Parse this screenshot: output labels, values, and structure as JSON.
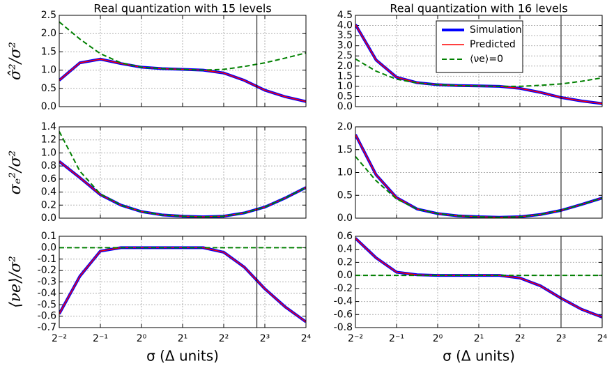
{
  "chart_data": [
    {
      "type": "line",
      "title": "Real quantization with 15 levels",
      "ylabel": "σ̂²/σ²",
      "x": [
        0.25,
        0.354,
        0.5,
        0.707,
        1,
        1.414,
        2,
        2.828,
        4,
        5.657,
        8,
        11.31,
        16
      ],
      "xlim": [
        0.25,
        16
      ],
      "x_log_base": 2,
      "xticks": [
        0.25,
        0.5,
        1,
        2,
        4,
        8,
        16
      ],
      "ylim": [
        0,
        2.5
      ],
      "yticks": [
        {
          "value": 0,
          "label": "0.0"
        },
        0.5,
        {
          "value": 1,
          "label": "1.0"
        },
        1.5,
        {
          "value": 2,
          "label": "2.0"
        },
        2.5
      ],
      "grid": true,
      "vline": 7,
      "series": [
        {
          "color": "#0000ff",
          "width": 4,
          "values": [
            0.72,
            1.2,
            1.3,
            1.18,
            1.08,
            1.04,
            1.02,
            1.0,
            0.92,
            0.72,
            0.45,
            0.27,
            0.14
          ]
        },
        {
          "color": "#ff0000",
          "width": 1.5,
          "values": [
            0.72,
            1.2,
            1.3,
            1.18,
            1.08,
            1.04,
            1.02,
            1.0,
            0.92,
            0.72,
            0.45,
            0.27,
            0.14
          ]
        },
        {
          "color": "#008000",
          "width": 2,
          "dash": true,
          "values": [
            2.32,
            1.85,
            1.45,
            1.2,
            1.08,
            1.04,
            1.02,
            1.0,
            1.02,
            1.1,
            1.2,
            1.33,
            1.47
          ]
        }
      ]
    },
    {
      "type": "line",
      "title": "Real quantization with 16 levels",
      "x": [
        0.25,
        0.354,
        0.5,
        0.707,
        1,
        1.414,
        2,
        2.828,
        4,
        5.657,
        8,
        11.31,
        16
      ],
      "xlim": [
        0.25,
        16
      ],
      "x_log_base": 2,
      "xticks": [
        0.25,
        0.5,
        1,
        2,
        4,
        8,
        16
      ],
      "ylim": [
        0,
        4.5
      ],
      "yticks": [
        {
          "value": 0,
          "label": "0.0"
        },
        0.5,
        {
          "value": 1,
          "label": "1.0"
        },
        1.5,
        {
          "value": 2,
          "label": "2.0"
        },
        2.5,
        {
          "value": 3,
          "label": "3.0"
        },
        3.5,
        {
          "value": 4,
          "label": "4.0"
        },
        4.5
      ],
      "grid": true,
      "vline": 8,
      "legend": "upper center",
      "series": [
        {
          "name": "Simulation",
          "color": "#0000ff",
          "width": 4,
          "values": [
            4.05,
            2.3,
            1.45,
            1.18,
            1.08,
            1.04,
            1.02,
            1.0,
            0.9,
            0.7,
            0.45,
            0.28,
            0.15
          ]
        },
        {
          "name": "Predicted",
          "color": "#ff0000",
          "width": 1.5,
          "values": [
            4.05,
            2.3,
            1.45,
            1.18,
            1.08,
            1.04,
            1.02,
            1.0,
            0.9,
            0.7,
            0.45,
            0.28,
            0.15
          ]
        },
        {
          "name": "⟨νe⟩=0",
          "color": "#008000",
          "width": 2,
          "dash": true,
          "values": [
            2.35,
            1.75,
            1.35,
            1.17,
            1.08,
            1.04,
            1.02,
            1.0,
            1.0,
            1.05,
            1.12,
            1.25,
            1.42
          ]
        }
      ]
    },
    {
      "type": "line",
      "ylabel": "σₑ²/σ²",
      "x": [
        0.25,
        0.354,
        0.5,
        0.707,
        1,
        1.414,
        2,
        2.828,
        4,
        5.657,
        8,
        11.31,
        16
      ],
      "xlim": [
        0.25,
        16
      ],
      "x_log_base": 2,
      "xticks": [
        0.25,
        0.5,
        1,
        2,
        4,
        8,
        16
      ],
      "ylim": [
        0,
        1.4
      ],
      "yticks": [
        {
          "value": 0,
          "label": "0.0"
        },
        0.2,
        0.4,
        0.6,
        0.8,
        {
          "value": 1,
          "label": "1.0"
        },
        1.2,
        1.4
      ],
      "grid": true,
      "vline": 7,
      "series": [
        {
          "color": "#0000ff",
          "width": 4,
          "values": [
            0.87,
            0.62,
            0.36,
            0.2,
            0.1,
            0.05,
            0.03,
            0.02,
            0.03,
            0.08,
            0.17,
            0.31,
            0.47
          ]
        },
        {
          "color": "#ff0000",
          "width": 1.5,
          "values": [
            0.87,
            0.62,
            0.36,
            0.2,
            0.1,
            0.05,
            0.03,
            0.02,
            0.03,
            0.08,
            0.17,
            0.31,
            0.47
          ]
        },
        {
          "color": "#008000",
          "width": 2,
          "dash": true,
          "values": [
            1.33,
            0.72,
            0.37,
            0.2,
            0.1,
            0.05,
            0.03,
            0.02,
            0.03,
            0.08,
            0.17,
            0.31,
            0.47
          ]
        }
      ]
    },
    {
      "type": "line",
      "x": [
        0.25,
        0.354,
        0.5,
        0.707,
        1,
        1.414,
        2,
        2.828,
        4,
        5.657,
        8,
        11.31,
        16
      ],
      "xlim": [
        0.25,
        16
      ],
      "x_log_base": 2,
      "xticks": [
        0.25,
        0.5,
        1,
        2,
        4,
        8,
        16
      ],
      "ylim": [
        0,
        2
      ],
      "yticks": [
        {
          "value": 0,
          "label": "0.0"
        },
        0.5,
        {
          "value": 1,
          "label": "1.0"
        },
        1.5,
        {
          "value": 2,
          "label": "2.0"
        }
      ],
      "grid": true,
      "vline": 8,
      "series": [
        {
          "color": "#0000ff",
          "width": 4,
          "values": [
            1.83,
            0.95,
            0.45,
            0.2,
            0.1,
            0.05,
            0.03,
            0.02,
            0.03,
            0.08,
            0.17,
            0.3,
            0.44
          ]
        },
        {
          "color": "#ff0000",
          "width": 1.5,
          "values": [
            1.83,
            0.95,
            0.45,
            0.2,
            0.1,
            0.05,
            0.03,
            0.02,
            0.03,
            0.08,
            0.17,
            0.3,
            0.44
          ]
        },
        {
          "color": "#008000",
          "width": 2,
          "dash": true,
          "values": [
            1.35,
            0.82,
            0.42,
            0.2,
            0.1,
            0.05,
            0.03,
            0.02,
            0.03,
            0.08,
            0.17,
            0.3,
            0.44
          ]
        }
      ]
    },
    {
      "type": "line",
      "ylabel": "⟨νe⟩/σ²",
      "xlabel": "σ (Δ units)",
      "x": [
        0.25,
        0.354,
        0.5,
        0.707,
        1,
        1.414,
        2,
        2.828,
        4,
        5.657,
        8,
        11.31,
        16
      ],
      "xlim": [
        0.25,
        16
      ],
      "x_log_base": 2,
      "xticks": [
        {
          "value": 0.25,
          "label": "2⁻²"
        },
        {
          "value": 0.5,
          "label": "2⁻¹"
        },
        {
          "value": 1,
          "label": "2⁰"
        },
        {
          "value": 2,
          "label": "2¹"
        },
        {
          "value": 4,
          "label": "2²"
        },
        {
          "value": 8,
          "label": "2³"
        },
        {
          "value": 16,
          "label": "2⁴"
        }
      ],
      "ylim": [
        -0.7,
        0.1
      ],
      "yticks": [
        -0.7,
        -0.6,
        -0.5,
        -0.4,
        -0.3,
        -0.2,
        -0.1,
        {
          "value": 0,
          "label": "0.0"
        },
        0.1
      ],
      "grid": true,
      "vline": 7,
      "series": [
        {
          "color": "#0000ff",
          "width": 4,
          "values": [
            -0.58,
            -0.25,
            -0.03,
            0,
            0,
            0,
            0,
            0,
            -0.04,
            -0.17,
            -0.36,
            -0.52,
            -0.65
          ]
        },
        {
          "color": "#ff0000",
          "width": 1.5,
          "values": [
            -0.58,
            -0.25,
            -0.03,
            0,
            0,
            0,
            0,
            0,
            -0.04,
            -0.17,
            -0.36,
            -0.52,
            -0.65
          ]
        },
        {
          "color": "#008000",
          "width": 2,
          "dash": true,
          "values": [
            0,
            0,
            0,
            0,
            0,
            0,
            0,
            0,
            0,
            0,
            0,
            0,
            0
          ]
        }
      ]
    },
    {
      "type": "line",
      "xlabel": "σ (Δ units)",
      "x": [
        0.25,
        0.354,
        0.5,
        0.707,
        1,
        1.414,
        2,
        2.828,
        4,
        5.657,
        8,
        11.31,
        16
      ],
      "xlim": [
        0.25,
        16
      ],
      "x_log_base": 2,
      "xticks": [
        {
          "value": 0.25,
          "label": "2⁻²"
        },
        {
          "value": 0.5,
          "label": "2⁻¹"
        },
        {
          "value": 1,
          "label": "2⁰"
        },
        {
          "value": 2,
          "label": "2¹"
        },
        {
          "value": 4,
          "label": "2²"
        },
        {
          "value": 8,
          "label": "2³"
        },
        {
          "value": 16,
          "label": "2⁴"
        }
      ],
      "ylim": [
        -0.8,
        0.6
      ],
      "yticks": [
        -0.8,
        -0.6,
        -0.4,
        -0.2,
        {
          "value": 0,
          "label": "0.0"
        },
        0.2,
        0.4,
        0.6
      ],
      "grid": true,
      "vline": 8,
      "series": [
        {
          "color": "#0000ff",
          "width": 4,
          "values": [
            0.57,
            0.27,
            0.05,
            0.01,
            0,
            0,
            0,
            0,
            -0.04,
            -0.16,
            -0.35,
            -0.52,
            -0.64
          ]
        },
        {
          "color": "#ff0000",
          "width": 1.5,
          "values": [
            0.57,
            0.27,
            0.05,
            0.01,
            0,
            0,
            0,
            0,
            -0.04,
            -0.16,
            -0.35,
            -0.52,
            -0.64
          ]
        },
        {
          "color": "#008000",
          "width": 2,
          "dash": true,
          "values": [
            0,
            0,
            0,
            0,
            0,
            0,
            0,
            0,
            0,
            0,
            0,
            0,
            0
          ]
        }
      ]
    }
  ]
}
